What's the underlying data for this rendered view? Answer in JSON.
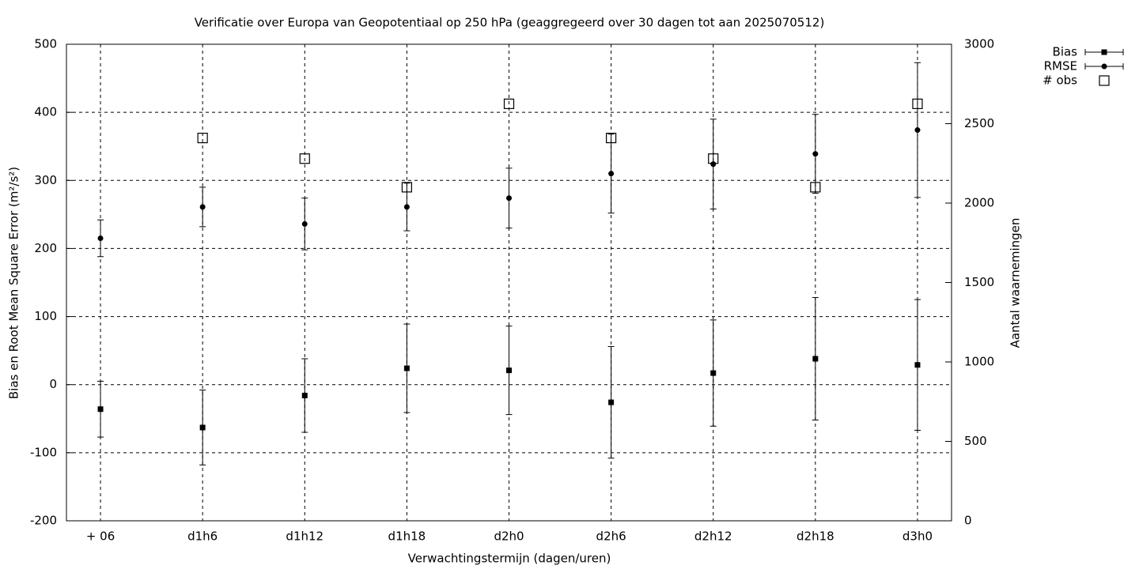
{
  "chart_data": {
    "type": "errorbar",
    "title": "Verificatie over Europa van Geopotentiaal op 250 hPa (geaggregeerd over 30 dagen tot aan 2025070512)",
    "xlabel": "Verwachtingstermijn (dagen/uren)",
    "ylabel": "Bias en Root Mean Square Error (m²/s²)",
    "y2label": "Aantal waarnemingen",
    "categories": [
      "+ 06",
      "d1h6",
      "d1h12",
      "d1h18",
      "d2h0",
      "d2h6",
      "d2h12",
      "d2h18",
      "d3h0"
    ],
    "ylim": [
      -200,
      500
    ],
    "yticks": [
      -200,
      -100,
      0,
      100,
      200,
      300,
      400,
      500
    ],
    "y2lim": [
      0,
      3000
    ],
    "y2ticks": [
      0,
      500,
      1000,
      1500,
      2000,
      2500,
      3000
    ],
    "grid": true,
    "legend": "top-right",
    "series": [
      {
        "name": "Bias",
        "color": "#000000",
        "marker": "square",
        "values": [
          -36,
          -63,
          -16,
          24,
          21,
          -26,
          17,
          38,
          29
        ],
        "errors": [
          41,
          55,
          54,
          65,
          65,
          82,
          78,
          90,
          96
        ]
      },
      {
        "name": "RMSE",
        "color": "#000000",
        "marker": "circle",
        "values": [
          215,
          261,
          236,
          261,
          274,
          310,
          324,
          339,
          374
        ],
        "errors": [
          27,
          29,
          38,
          35,
          44,
          58,
          66,
          58,
          99
        ]
      },
      {
        "name": "# obs",
        "color": "#000000",
        "marker": "open-square",
        "axis": "y2",
        "values": [
          null,
          2410,
          2280,
          2100,
          2625,
          2410,
          2280,
          2100,
          2625
        ]
      }
    ]
  }
}
